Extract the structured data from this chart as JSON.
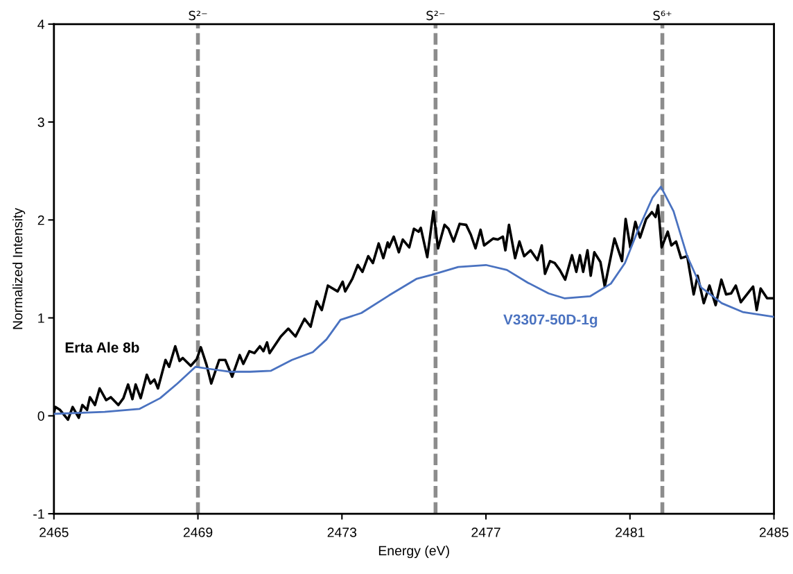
{
  "chart_data": {
    "type": "line",
    "xlabel": "Energy (eV)",
    "ylabel": "Normalized Intensity",
    "xlim": [
      2465,
      2485
    ],
    "xticks": [
      2465,
      2469,
      2473,
      2477,
      2481,
      2485
    ],
    "ylim": [
      -1,
      4
    ],
    "yticks": [
      -1,
      0,
      1,
      2,
      3,
      4
    ],
    "grid": false,
    "legend": false,
    "marker": "none",
    "line_style": "solid",
    "ref_lines": [
      {
        "axis": "x",
        "value": 2469,
        "label": "S²⁻",
        "color": "#8c8c8c",
        "line_style": "dashed"
      },
      {
        "axis": "x",
        "value": 2475.6,
        "label": "S²⁻",
        "color": "#8c8c8c",
        "line_style": "dashed"
      },
      {
        "axis": "x",
        "value": 2481.9,
        "label": "S⁶⁺",
        "color": "#8c8c8c",
        "line_style": "dashed"
      }
    ],
    "series": [
      {
        "name": "Erta Ale 8b",
        "color": "#000000",
        "x": [
          2465.0,
          2465.04,
          2465.17,
          2465.39,
          2465.52,
          2465.69,
          2465.79,
          2465.92,
          2466.0,
          2466.14,
          2466.27,
          2466.45,
          2466.58,
          2466.79,
          2466.93,
          2467.06,
          2467.18,
          2467.27,
          2467.41,
          2467.58,
          2467.68,
          2467.79,
          2467.89,
          2468.1,
          2468.2,
          2468.37,
          2468.49,
          2468.58,
          2468.8,
          2468.97,
          2469.08,
          2469.24,
          2469.37,
          2469.59,
          2469.76,
          2469.95,
          2470.16,
          2470.26,
          2470.43,
          2470.57,
          2470.72,
          2470.82,
          2470.92,
          2470.99,
          2471.3,
          2471.51,
          2471.71,
          2471.96,
          2472.13,
          2472.3,
          2472.44,
          2472.61,
          2472.88,
          2473.02,
          2473.09,
          2473.29,
          2473.44,
          2473.57,
          2473.73,
          2473.86,
          2474.02,
          2474.15,
          2474.27,
          2474.31,
          2474.44,
          2474.58,
          2474.69,
          2474.87,
          2475.0,
          2475.13,
          2475.19,
          2475.37,
          2475.54,
          2475.67,
          2475.85,
          2475.96,
          2476.1,
          2476.27,
          2476.45,
          2476.58,
          2476.71,
          2476.85,
          2476.95,
          2477.2,
          2477.33,
          2477.47,
          2477.54,
          2477.64,
          2477.81,
          2477.93,
          2478.06,
          2478.24,
          2478.43,
          2478.55,
          2478.64,
          2478.78,
          2478.91,
          2479.05,
          2479.2,
          2479.39,
          2479.51,
          2479.61,
          2479.7,
          2479.82,
          2479.91,
          2480.01,
          2480.18,
          2480.3,
          2480.57,
          2480.78,
          2480.88,
          2481.01,
          2481.15,
          2481.28,
          2481.45,
          2481.61,
          2481.71,
          2481.78,
          2481.88,
          2482.05,
          2482.15,
          2482.28,
          2482.42,
          2482.59,
          2482.77,
          2482.88,
          2483.05,
          2483.21,
          2483.38,
          2483.54,
          2483.67,
          2483.81,
          2483.94,
          2484.08,
          2484.42,
          2484.52,
          2484.63,
          2484.81,
          2485.0
        ],
        "values": [
          0.03,
          0.09,
          0.06,
          -0.04,
          0.09,
          -0.02,
          0.11,
          0.06,
          0.19,
          0.11,
          0.28,
          0.16,
          0.19,
          0.11,
          0.18,
          0.32,
          0.17,
          0.32,
          0.18,
          0.42,
          0.33,
          0.37,
          0.28,
          0.57,
          0.5,
          0.71,
          0.56,
          0.59,
          0.51,
          0.58,
          0.7,
          0.52,
          0.33,
          0.57,
          0.57,
          0.4,
          0.62,
          0.53,
          0.66,
          0.64,
          0.71,
          0.66,
          0.75,
          0.64,
          0.81,
          0.89,
          0.81,
          0.99,
          0.91,
          1.17,
          1.08,
          1.33,
          1.27,
          1.37,
          1.27,
          1.4,
          1.54,
          1.47,
          1.63,
          1.56,
          1.76,
          1.61,
          1.77,
          1.72,
          1.83,
          1.67,
          1.8,
          1.72,
          1.91,
          1.88,
          1.92,
          1.62,
          2.09,
          1.71,
          1.95,
          1.91,
          1.78,
          1.96,
          1.95,
          1.85,
          1.71,
          1.9,
          1.74,
          1.81,
          1.8,
          1.83,
          1.69,
          1.95,
          1.61,
          1.78,
          1.63,
          1.69,
          1.59,
          1.74,
          1.45,
          1.58,
          1.56,
          1.49,
          1.39,
          1.64,
          1.47,
          1.64,
          1.47,
          1.69,
          1.43,
          1.67,
          1.57,
          1.32,
          1.81,
          1.58,
          2.01,
          1.72,
          1.98,
          1.82,
          2.01,
          2.08,
          2.03,
          2.15,
          1.72,
          1.88,
          1.74,
          1.78,
          1.61,
          1.63,
          1.24,
          1.43,
          1.15,
          1.33,
          1.13,
          1.39,
          1.24,
          1.25,
          1.33,
          1.16,
          1.32,
          1.08,
          1.3,
          1.2,
          1.2
        ]
      },
      {
        "name": "V3307-50D-1g",
        "color": "#4a72c0",
        "x": [
          2465.0,
          2466.41,
          2467.37,
          2467.95,
          2468.43,
          2468.93,
          2469.3,
          2469.87,
          2470.45,
          2471.03,
          2471.61,
          2472.19,
          2472.57,
          2472.96,
          2473.54,
          2474.31,
          2475.08,
          2475.5,
          2476.23,
          2477.0,
          2477.58,
          2478.16,
          2478.74,
          2479.18,
          2479.89,
          2480.47,
          2480.86,
          2481.24,
          2481.63,
          2481.86,
          2482.21,
          2482.59,
          2482.98,
          2483.55,
          2484.13,
          2485.0
        ],
        "values": [
          0.02,
          0.04,
          0.07,
          0.18,
          0.33,
          0.5,
          0.48,
          0.45,
          0.45,
          0.46,
          0.57,
          0.65,
          0.78,
          0.98,
          1.05,
          1.23,
          1.4,
          1.44,
          1.52,
          1.54,
          1.49,
          1.36,
          1.25,
          1.2,
          1.22,
          1.35,
          1.56,
          1.91,
          2.23,
          2.34,
          2.09,
          1.63,
          1.31,
          1.15,
          1.06,
          1.01
        ]
      }
    ]
  }
}
